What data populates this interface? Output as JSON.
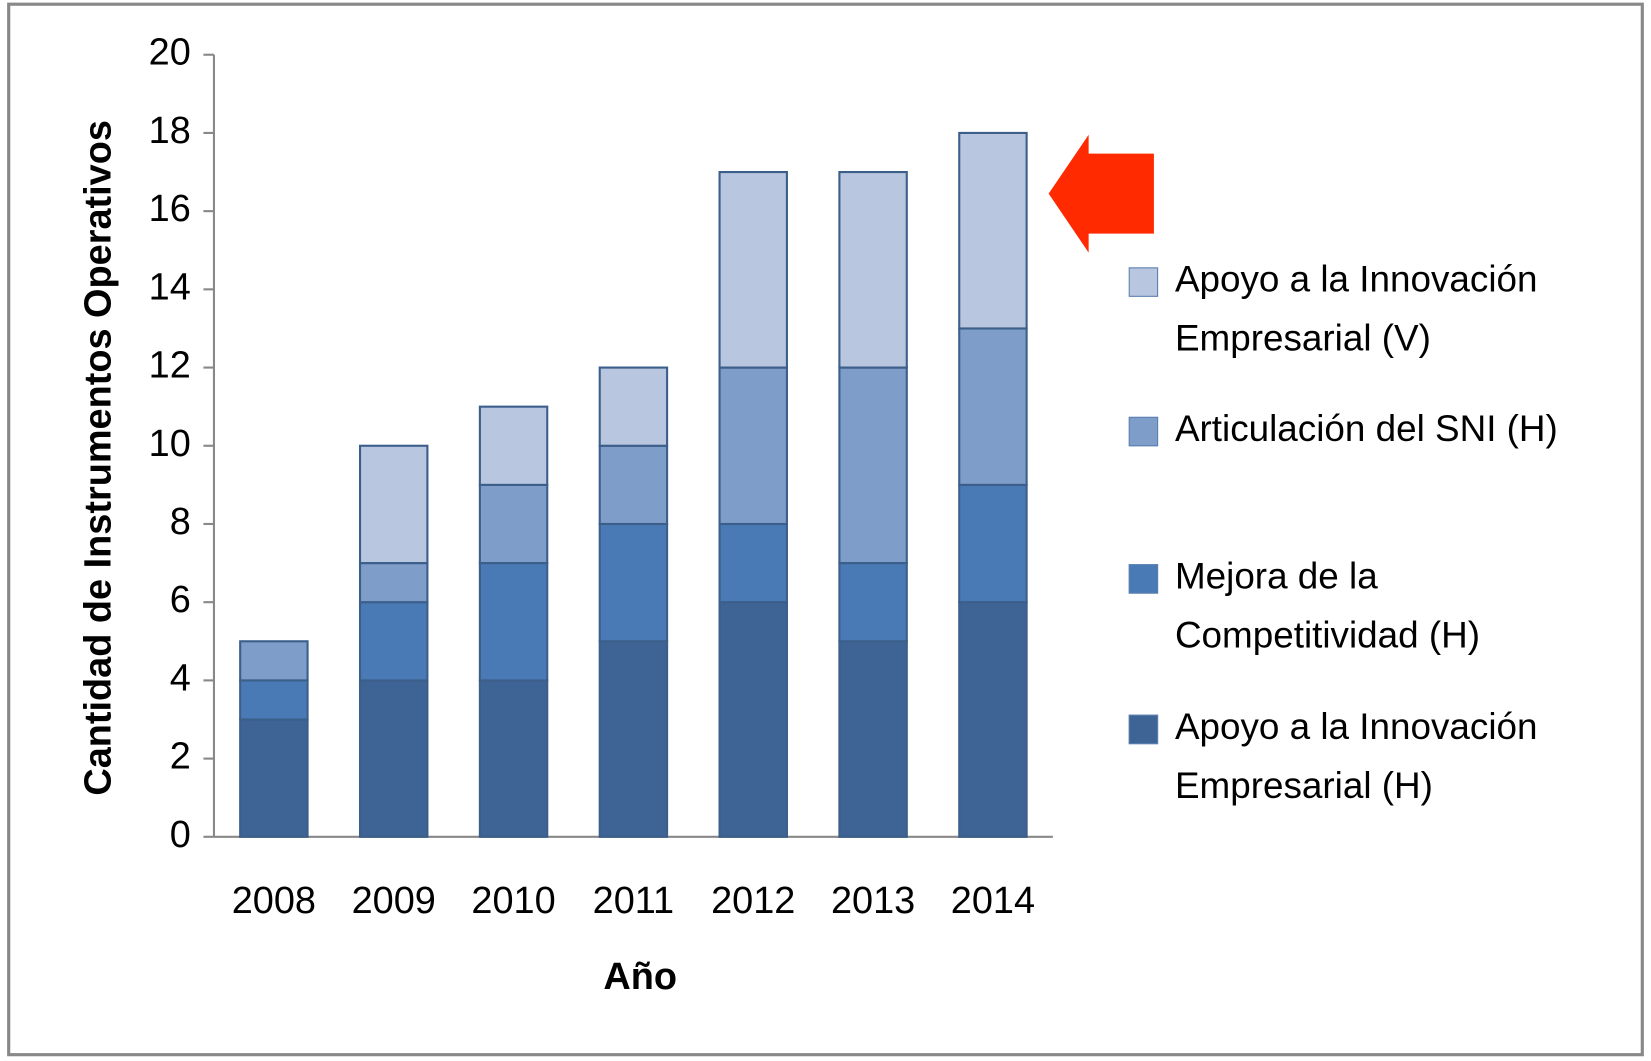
{
  "chart_data": {
    "type": "stacked_bar",
    "xlabel": "Año",
    "ylabel": "Cantidad de Instrumentos Operativos",
    "categories": [
      "2008",
      "2009",
      "2010",
      "2011",
      "2012",
      "2013",
      "2014"
    ],
    "series": [
      {
        "name": "Apoyo a la Innovación Empresarial (H)",
        "color": "#3d6494",
        "values": [
          3,
          4,
          4,
          5,
          6,
          5,
          6
        ]
      },
      {
        "name": "Mejora de la Competitividad (H)",
        "color": "#4a7ab5",
        "values": [
          1,
          2,
          3,
          3,
          2,
          2,
          3
        ]
      },
      {
        "name": "Articulación del SNI (H)",
        "color": "#7f9dc9",
        "values": [
          1,
          1,
          2,
          2,
          4,
          5,
          4
        ]
      },
      {
        "name": "Apoyo a la Innovación Empresarial (V)",
        "color": "#b9c6df",
        "values": [
          0,
          3,
          2,
          2,
          5,
          5,
          5
        ]
      }
    ],
    "ylim": [
      0,
      20
    ],
    "yticks": [
      0,
      2,
      4,
      6,
      8,
      10,
      12,
      14,
      16,
      18,
      20
    ],
    "legend": "right"
  }
}
